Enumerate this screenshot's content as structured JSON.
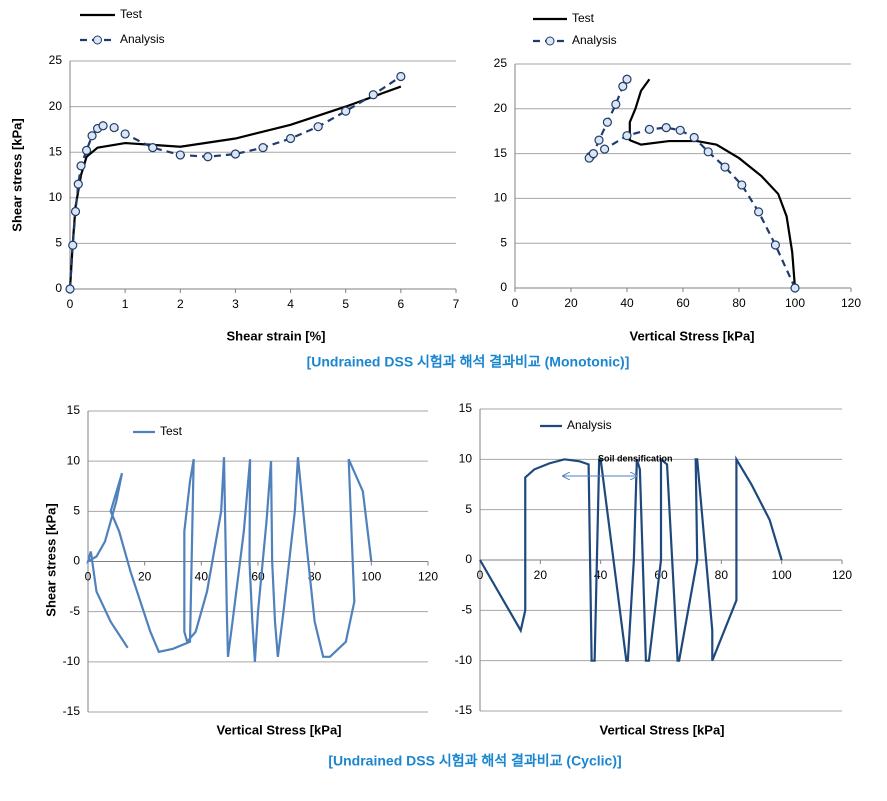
{
  "captions": [
    "[Undrained DSS 시험과 해석 결과비교 (Monotonic)]",
    "[Undrained DSS 시험과 해석 결과비교 (Cyclic)]"
  ],
  "chart_data": [
    {
      "type": "line",
      "x_label": "Shear strain [%]",
      "y_label": "Shear stress [kPa]",
      "xlim": [
        0,
        7
      ],
      "ylim": [
        0,
        25
      ],
      "xticks": [
        0,
        1,
        2,
        3,
        4,
        5,
        6,
        7
      ],
      "yticks": [
        0,
        5,
        10,
        15,
        20,
        25
      ],
      "grid": true,
      "series": [
        {
          "name": "Test",
          "color": "#000000",
          "dash": false,
          "markers": false,
          "x": [
            0,
            0.05,
            0.1,
            0.2,
            0.3,
            0.5,
            1,
            1.5,
            2,
            3,
            4,
            5,
            6
          ],
          "values": [
            0,
            5,
            9,
            12.5,
            14.5,
            15.5,
            16,
            15.8,
            15.6,
            16.5,
            18,
            20,
            22.2
          ]
        },
        {
          "name": "Analysis",
          "color": "#1f3c6e",
          "dash": true,
          "markers": true,
          "x": [
            0,
            0.05,
            0.1,
            0.15,
            0.2,
            0.3,
            0.4,
            0.5,
            0.6,
            0.8,
            1,
            1.5,
            2,
            2.5,
            3,
            3.5,
            4,
            4.5,
            5,
            5.5,
            6
          ],
          "values": [
            0,
            4.8,
            8.5,
            11.5,
            13.5,
            15.2,
            16.8,
            17.6,
            17.9,
            17.7,
            17,
            15.5,
            14.7,
            14.5,
            14.8,
            15.5,
            16.5,
            17.8,
            19.5,
            21.3,
            23.3
          ]
        }
      ]
    },
    {
      "type": "line",
      "x_label": "Vertical Stress [kPa]",
      "xlim": [
        0,
        120
      ],
      "ylim": [
        0,
        25
      ],
      "xticks": [
        0,
        20,
        40,
        60,
        80,
        100,
        120
      ],
      "yticks": [
        0,
        5,
        10,
        15,
        20,
        25
      ],
      "grid": true,
      "series": [
        {
          "name": "Test",
          "color": "#000000",
          "dash": false,
          "markers": false,
          "x": [
            100,
            99,
            97,
            94,
            88,
            80,
            72,
            65,
            55,
            45,
            41,
            41,
            41,
            43,
            45,
            48
          ],
          "values": [
            0,
            4,
            8,
            10.5,
            12.5,
            14.5,
            16,
            16.4,
            16.4,
            16,
            16.5,
            17.5,
            18.5,
            20,
            22,
            23.3
          ]
        },
        {
          "name": "Analysis",
          "color": "#1f3c6e",
          "dash": true,
          "markers": true,
          "x": [
            100,
            93,
            87,
            81,
            75,
            69,
            64,
            59,
            54,
            48,
            40,
            32,
            27,
            26.5,
            28,
            30,
            33,
            36,
            38.5,
            40
          ],
          "values": [
            0,
            4.8,
            8.5,
            11.5,
            13.5,
            15.2,
            16.8,
            17.6,
            17.9,
            17.7,
            17,
            15.5,
            14.7,
            14.5,
            15,
            16.5,
            18.5,
            20.5,
            22.5,
            23.3
          ]
        }
      ]
    },
    {
      "type": "line",
      "x_label": "Vertical Stress [kPa]",
      "y_label": "Shear stress [kPa]",
      "xlim": [
        0,
        120
      ],
      "ylim": [
        -15,
        15
      ],
      "xticks": [
        0,
        20,
        40,
        60,
        80,
        100,
        120
      ],
      "yticks": [
        -15,
        -10,
        -5,
        0,
        5,
        10,
        15
      ],
      "grid": true,
      "series": [
        {
          "name": "Test",
          "color": "#4f81bd",
          "dash": false,
          "markers": false,
          "x": [
            100,
            97,
            92,
            93,
            94,
            91,
            85.4,
            83,
            80,
            77,
            74.1,
            73,
            69,
            67,
            66,
            65,
            64.6,
            63,
            60,
            58.9,
            58,
            57,
            57.2,
            55,
            51,
            49.4,
            49,
            48,
            47,
            42,
            38,
            35,
            34,
            34,
            36,
            37.3,
            36,
            30,
            25,
            22,
            15,
            11,
            8,
            12,
            10,
            6,
            3,
            0,
            1,
            3,
            8,
            14
          ],
          "values": [
            0,
            7,
            10.2,
            3,
            -4,
            -8,
            -9.5,
            -9.5,
            -6,
            2,
            10.4,
            5,
            -5,
            -9.5,
            -6,
            0,
            10,
            4,
            -5,
            -10,
            -6,
            0,
            10.2,
            3,
            -6,
            -9.5,
            -5,
            10.4,
            5,
            -3,
            -7,
            -8,
            -7,
            3,
            8,
            10.2,
            -8,
            -8.7,
            -9,
            -7,
            -1,
            3,
            5,
            8.8,
            6,
            2,
            0.5,
            0,
            1,
            -3,
            -6,
            -8.6
          ]
        }
      ]
    },
    {
      "type": "line",
      "x_label": "Vertical Stress [kPa]",
      "xlim": [
        0,
        120
      ],
      "ylim": [
        -15,
        15
      ],
      "xticks": [
        0,
        20,
        40,
        60,
        80,
        100,
        120
      ],
      "yticks": [
        -15,
        -10,
        -5,
        0,
        5,
        10,
        15
      ],
      "grid": true,
      "annotations": [
        "Soil densification"
      ],
      "series": [
        {
          "name": "Analysis",
          "color": "#1f497d",
          "dash": false,
          "markers": false,
          "x": [
            100,
            96,
            90,
            85,
            85,
            77,
            77,
            72,
            71.5,
            72,
            66,
            65.5,
            62,
            60,
            60,
            56,
            55,
            53,
            52,
            51,
            49,
            48.5,
            40,
            39.5,
            38,
            37,
            36,
            33,
            28,
            23,
            18,
            15,
            15,
            13.5,
            0
          ],
          "values": [
            0,
            4,
            7.5,
            10,
            -4,
            -10,
            -7,
            10,
            10,
            0,
            -10,
            -10,
            9.5,
            10,
            0,
            -10,
            -10,
            9,
            10,
            0,
            -10,
            -10,
            10,
            10,
            -10,
            -10,
            9.5,
            9.8,
            10,
            9.6,
            9,
            8.2,
            -5,
            -7,
            0
          ]
        }
      ]
    }
  ]
}
